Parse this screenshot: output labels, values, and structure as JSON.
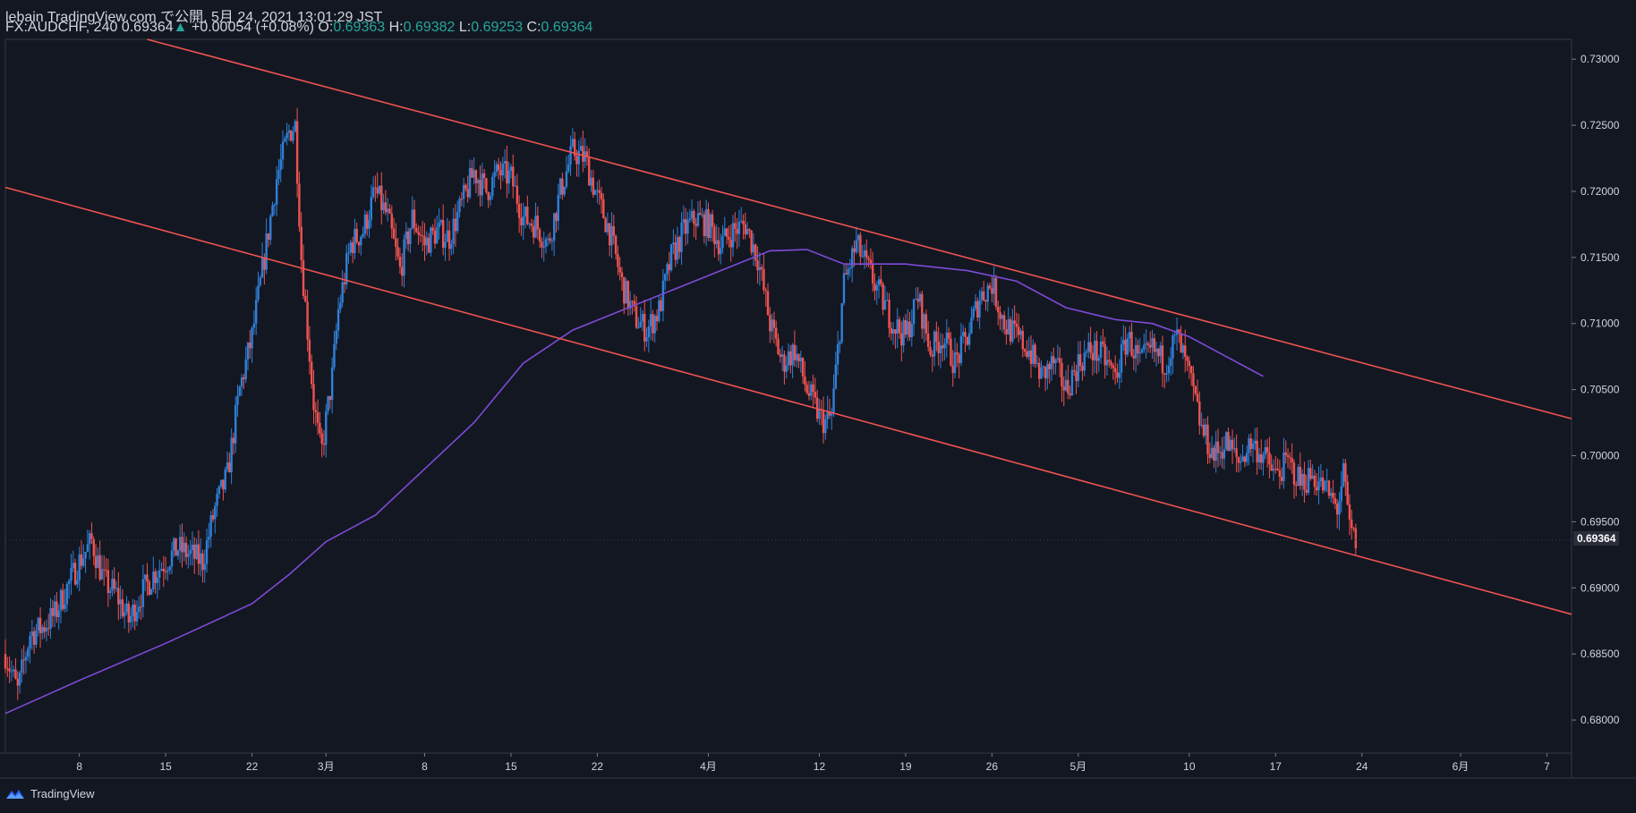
{
  "header": {
    "line1": "lebain TradingView.com で公開, 5月 24, 2021 13:01:29 JST",
    "symbol": "FX:AUDCHF, 240",
    "last": "0.69364",
    "arrow": "▲",
    "change": "+0.00054 (+0.08%)",
    "o_label": "O:",
    "o_val": "0.69363",
    "h_label": "H:",
    "h_val": "0.69382",
    "l_label": "L:",
    "l_val": "0.69253",
    "c_label": "C:",
    "c_val": "0.69364"
  },
  "footer": {
    "brand": "TradingView",
    "logo_icon": "tradingview-logo-icon"
  },
  "colors": {
    "up": "#2f80d8",
    "down": "#ef5350",
    "trend": "#ef5350",
    "ma": "#7e4bd6",
    "bg": "#131722"
  },
  "chart_data": {
    "type": "candlestick",
    "ylim": [
      0.6775,
      0.7315
    ],
    "y_ticks": [
      0.68,
      0.685,
      0.69,
      0.695,
      0.7,
      0.705,
      0.71,
      0.715,
      0.72,
      0.725,
      0.73
    ],
    "y_tick_labels": [
      "0.68000",
      "0.68500",
      "0.69000",
      "0.69500",
      "0.70000",
      "0.70500",
      "0.71000",
      "0.71500",
      "0.72000",
      "0.72500",
      "0.73000"
    ],
    "current_price_label": "0.69364",
    "x_tick_labels": [
      "8",
      "15",
      "22",
      "3月",
      "8",
      "15",
      "22",
      "4月",
      "12",
      "19",
      "26",
      "5月",
      "10",
      "17",
      "24",
      "6月",
      "7"
    ],
    "x_ticks_day": [
      8,
      15,
      22,
      28,
      36,
      43,
      50,
      59,
      68,
      75,
      82,
      89,
      98,
      105,
      112,
      120,
      127
    ],
    "x_range_day": [
      2,
      129
    ],
    "close_anchors": [
      [
        2,
        0.685
      ],
      [
        3,
        0.6822
      ],
      [
        4,
        0.6865
      ],
      [
        5,
        0.687
      ],
      [
        6,
        0.688
      ],
      [
        7,
        0.69
      ],
      [
        8,
        0.692
      ],
      [
        9,
        0.6935
      ],
      [
        10,
        0.6905
      ],
      [
        11,
        0.6895
      ],
      [
        12,
        0.6875
      ],
      [
        13,
        0.6895
      ],
      [
        14,
        0.691
      ],
      [
        15,
        0.692
      ],
      [
        16,
        0.693
      ],
      [
        17,
        0.6925
      ],
      [
        18,
        0.692
      ],
      [
        19,
        0.696
      ],
      [
        20,
        0.6985
      ],
      [
        21,
        0.705
      ],
      [
        22,
        0.709
      ],
      [
        23,
        0.715
      ],
      [
        24,
        0.721
      ],
      [
        25,
        0.7245
      ],
      [
        25.5,
        0.725
      ],
      [
        26,
        0.715
      ],
      [
        27,
        0.704
      ],
      [
        27.6,
        0.7
      ],
      [
        28.5,
        0.706
      ],
      [
        29,
        0.711
      ],
      [
        30,
        0.716
      ],
      [
        31,
        0.717
      ],
      [
        32,
        0.72
      ],
      [
        33,
        0.718
      ],
      [
        34,
        0.714
      ],
      [
        35,
        0.718
      ],
      [
        36,
        0.716
      ],
      [
        37,
        0.717
      ],
      [
        38,
        0.7165
      ],
      [
        39,
        0.719
      ],
      [
        40,
        0.7215
      ],
      [
        41,
        0.72
      ],
      [
        42,
        0.7215
      ],
      [
        43,
        0.721
      ],
      [
        44,
        0.718
      ],
      [
        45,
        0.7175
      ],
      [
        46,
        0.716
      ],
      [
        47,
        0.72
      ],
      [
        48,
        0.723
      ],
      [
        49,
        0.7225
      ],
      [
        50,
        0.7195
      ],
      [
        51,
        0.717
      ],
      [
        52,
        0.713
      ],
      [
        53,
        0.7105
      ],
      [
        54,
        0.7095
      ],
      [
        55,
        0.711
      ],
      [
        56,
        0.715
      ],
      [
        57,
        0.717
      ],
      [
        58,
        0.718
      ],
      [
        59,
        0.7175
      ],
      [
        60,
        0.716
      ],
      [
        61,
        0.717
      ],
      [
        62,
        0.7175
      ],
      [
        63,
        0.715
      ],
      [
        64,
        0.71
      ],
      [
        65,
        0.707
      ],
      [
        66,
        0.708
      ],
      [
        67,
        0.705
      ],
      [
        68,
        0.703
      ],
      [
        68.5,
        0.7025
      ],
      [
        69,
        0.703
      ],
      [
        70,
        0.713
      ],
      [
        71,
        0.716
      ],
      [
        72,
        0.714
      ],
      [
        73,
        0.712
      ],
      [
        74,
        0.71
      ],
      [
        75,
        0.709
      ],
      [
        76,
        0.712
      ],
      [
        77,
        0.708
      ],
      [
        78,
        0.709
      ],
      [
        79,
        0.707
      ],
      [
        80,
        0.709
      ],
      [
        81,
        0.712
      ],
      [
        82,
        0.713
      ],
      [
        83,
        0.71
      ],
      [
        84,
        0.709
      ],
      [
        85,
        0.708
      ],
      [
        86,
        0.706
      ],
      [
        87,
        0.707
      ],
      [
        88,
        0.705
      ],
      [
        89,
        0.707
      ],
      [
        90,
        0.708
      ],
      [
        91,
        0.7075
      ],
      [
        92,
        0.706
      ],
      [
        93,
        0.709
      ],
      [
        94,
        0.707
      ],
      [
        95,
        0.708
      ],
      [
        96,
        0.707
      ],
      [
        97,
        0.709
      ],
      [
        98,
        0.706
      ],
      [
        99,
        0.702
      ],
      [
        100,
        0.7
      ],
      [
        101,
        0.701
      ],
      [
        102,
        0.6995
      ],
      [
        103,
        0.701
      ],
      [
        104,
        0.7
      ],
      [
        105,
        0.6985
      ],
      [
        106,
        0.6995
      ],
      [
        107,
        0.698
      ],
      [
        108,
        0.6985
      ],
      [
        109,
        0.6975
      ],
      [
        110,
        0.696
      ],
      [
        110.5,
        0.6985
      ],
      [
        111,
        0.6945
      ],
      [
        111.5,
        0.6935
      ]
    ],
    "moving_average": [
      [
        2,
        0.6805
      ],
      [
        8,
        0.683
      ],
      [
        15,
        0.6858
      ],
      [
        22,
        0.6888
      ],
      [
        25,
        0.691
      ],
      [
        28,
        0.6935
      ],
      [
        32,
        0.6955
      ],
      [
        36,
        0.699
      ],
      [
        40,
        0.7025
      ],
      [
        44,
        0.707
      ],
      [
        48,
        0.7095
      ],
      [
        52,
        0.711
      ],
      [
        56,
        0.7125
      ],
      [
        60,
        0.714
      ],
      [
        64,
        0.7155
      ],
      [
        67,
        0.7156
      ],
      [
        70,
        0.7145
      ],
      [
        75,
        0.7145
      ],
      [
        80,
        0.714
      ],
      [
        84,
        0.7132
      ],
      [
        88,
        0.7112
      ],
      [
        92,
        0.7103
      ],
      [
        95,
        0.71
      ],
      [
        98,
        0.709
      ],
      [
        101,
        0.7075
      ],
      [
        104,
        0.706
      ]
    ],
    "trendlines": [
      {
        "name": "upper",
        "points": [
          [
            13.5,
            0.7315
          ],
          [
            129,
            0.7028
          ]
        ]
      },
      {
        "name": "lower",
        "points": [
          [
            2,
            0.7203
          ],
          [
            129,
            0.688
          ]
        ]
      }
    ],
    "grid": false
  }
}
